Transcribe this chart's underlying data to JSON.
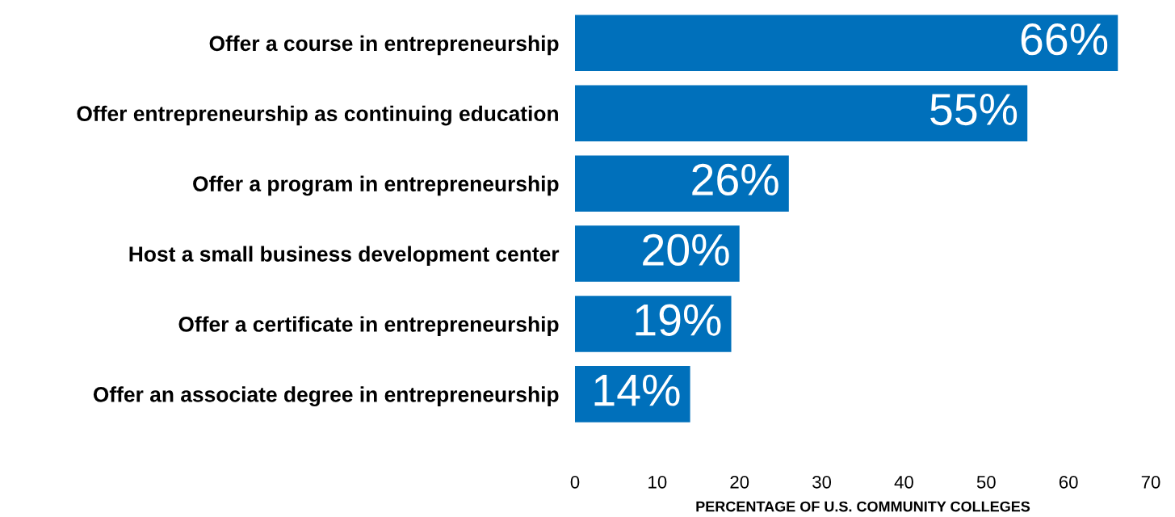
{
  "chart_data": {
    "type": "bar",
    "orientation": "horizontal",
    "categories": [
      "Offer a course in entrepreneurship",
      "Offer entrepreneurship as continuing education",
      "Offer a program in entrepreneurship",
      "Host a small business development center",
      "Offer a certificate in entrepreneurship",
      "Offer an associate degree in entrepreneurship"
    ],
    "values": [
      66,
      55,
      26,
      20,
      19,
      14
    ],
    "value_labels": [
      "66%",
      "55%",
      "26%",
      "20%",
      "19%",
      "14%"
    ],
    "color": "#0070bb",
    "xlim": [
      0,
      70
    ],
    "xticks": [
      0,
      10,
      20,
      30,
      40,
      50,
      60,
      70
    ],
    "xlabel": "PERCENTAGE OF U.S. COMMUNITY COLLEGES",
    "grid": false,
    "legend": false
  }
}
